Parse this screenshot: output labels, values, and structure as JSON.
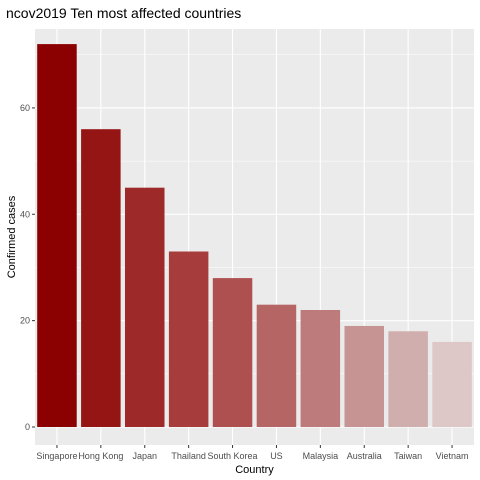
{
  "chart_data": {
    "type": "bar",
    "title": "ncov2019 Ten most affected countries",
    "xlabel": "Country",
    "ylabel": "Confirmed cases",
    "categories": [
      "Singapore",
      "Hong Kong",
      "Japan",
      "Thailand",
      "South Korea",
      "US",
      "Malaysia",
      "Australia",
      "Taiwan",
      "Vietnam"
    ],
    "values": [
      72,
      56,
      45,
      33,
      28,
      23,
      22,
      19,
      18,
      16
    ],
    "colors": [
      "#8b0000",
      "#951515",
      "#9e2929",
      "#a63c3c",
      "#ae5050",
      "#b66565",
      "#be7b7b",
      "#c79494",
      "#d1aeae",
      "#dec7c7"
    ],
    "ylim": [
      0,
      75
    ],
    "yticks": [
      0,
      20,
      40,
      60
    ],
    "grid": true,
    "panel_color": "#ebebeb",
    "grid_color": "#ffffff"
  }
}
